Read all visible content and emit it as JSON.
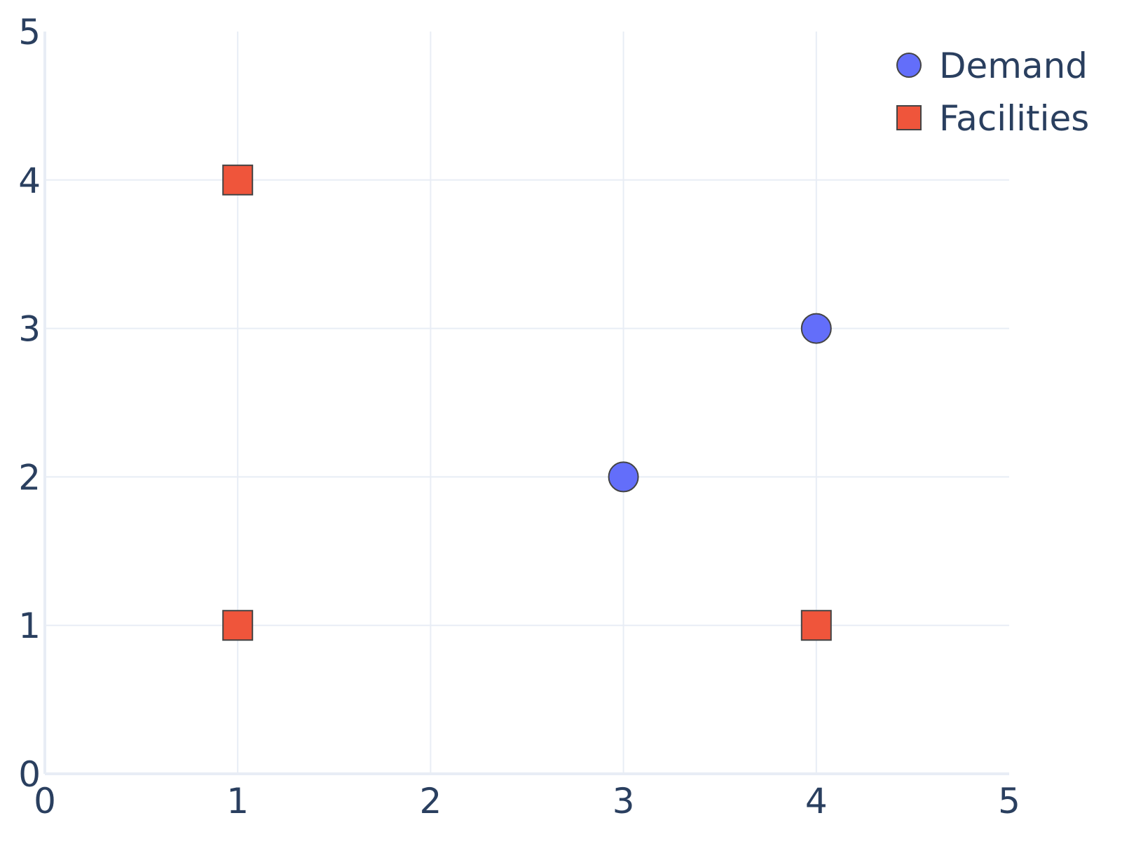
{
  "chart_data": {
    "type": "scatter",
    "title": "",
    "xlabel": "",
    "ylabel": "",
    "xlim": [
      0,
      5
    ],
    "ylim": [
      0,
      5
    ],
    "x_ticks": [
      "0",
      "1",
      "2",
      "3",
      "4",
      "5"
    ],
    "y_ticks": [
      "0",
      "1",
      "2",
      "3",
      "4",
      "5"
    ],
    "grid": true,
    "legend_position": "top-right",
    "series": [
      {
        "name": "Demand",
        "marker": "circle",
        "color": "#636efa",
        "points": [
          {
            "x": 3,
            "y": 2
          },
          {
            "x": 4,
            "y": 3
          }
        ]
      },
      {
        "name": "Facilities",
        "marker": "square",
        "color": "#ef553b",
        "points": [
          {
            "x": 1,
            "y": 4
          },
          {
            "x": 1,
            "y": 1
          },
          {
            "x": 4,
            "y": 1
          }
        ]
      }
    ]
  }
}
